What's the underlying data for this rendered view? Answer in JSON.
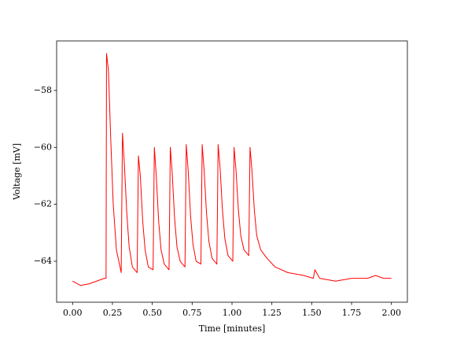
{
  "chart_data": {
    "type": "line",
    "xlabel": "Time [minutes]",
    "ylabel": "Voltage [mV]",
    "x": [
      0,
      0.05,
      0.1,
      0.15,
      0.2,
      0.21,
      0.213,
      0.225,
      0.24,
      0.255,
      0.275,
      0.305,
      0.313,
      0.325,
      0.34,
      0.355,
      0.375,
      0.405,
      0.413,
      0.425,
      0.44,
      0.455,
      0.475,
      0.505,
      0.513,
      0.525,
      0.54,
      0.555,
      0.575,
      0.605,
      0.613,
      0.625,
      0.64,
      0.655,
      0.675,
      0.705,
      0.713,
      0.725,
      0.74,
      0.755,
      0.775,
      0.805,
      0.813,
      0.825,
      0.84,
      0.855,
      0.875,
      0.905,
      0.913,
      0.925,
      0.94,
      0.955,
      0.975,
      1.005,
      1.013,
      1.025,
      1.04,
      1.055,
      1.075,
      1.105,
      1.113,
      1.125,
      1.14,
      1.155,
      1.18,
      1.22,
      1.27,
      1.35,
      1.45,
      1.51,
      1.52,
      1.55,
      1.65,
      1.75,
      1.85,
      1.9,
      1.95,
      2.0
    ],
    "values": [
      -64.7,
      -64.85,
      -64.8,
      -64.7,
      -64.6,
      -64.6,
      -56.7,
      -57.3,
      -59.8,
      -62.0,
      -63.6,
      -64.4,
      -59.5,
      -60.6,
      -62.3,
      -63.5,
      -64.2,
      -64.4,
      -60.3,
      -61.0,
      -62.6,
      -63.6,
      -64.2,
      -64.3,
      -60.0,
      -61.0,
      -62.6,
      -63.6,
      -64.1,
      -64.3,
      -60.0,
      -60.9,
      -62.5,
      -63.5,
      -64.0,
      -64.2,
      -59.9,
      -60.8,
      -62.4,
      -63.4,
      -64.0,
      -64.1,
      -59.9,
      -60.8,
      -62.3,
      -63.3,
      -63.9,
      -64.1,
      -59.9,
      -60.7,
      -62.2,
      -63.2,
      -63.8,
      -64.0,
      -60.0,
      -60.8,
      -62.2,
      -63.1,
      -63.6,
      -63.8,
      -60.0,
      -60.8,
      -62.2,
      -63.1,
      -63.6,
      -63.9,
      -64.2,
      -64.4,
      -64.5,
      -64.6,
      -64.3,
      -64.6,
      -64.7,
      -64.6,
      -64.6,
      -64.5,
      -64.6,
      -64.6
    ],
    "color": "#ff0000",
    "xlim": [
      -0.1,
      2.1
    ],
    "ylim": [
      -65.44,
      -56.26
    ],
    "xticks": [
      {
        "value": 0,
        "label": "0.00"
      },
      {
        "value": 0.25,
        "label": "0.25"
      },
      {
        "value": 0.5,
        "label": "0.50"
      },
      {
        "value": 0.75,
        "label": "0.75"
      },
      {
        "value": 1,
        "label": "1.00"
      },
      {
        "value": 1.25,
        "label": "1.25"
      },
      {
        "value": 1.5,
        "label": "1.50"
      },
      {
        "value": 1.75,
        "label": "1.75"
      },
      {
        "value": 2,
        "label": "2.00"
      }
    ],
    "yticks": [
      {
        "value": -64,
        "label": "−64"
      },
      {
        "value": -62,
        "label": "−62"
      },
      {
        "value": -60,
        "label": "−60"
      },
      {
        "value": -58,
        "label": "−58"
      }
    ],
    "grid": false
  }
}
